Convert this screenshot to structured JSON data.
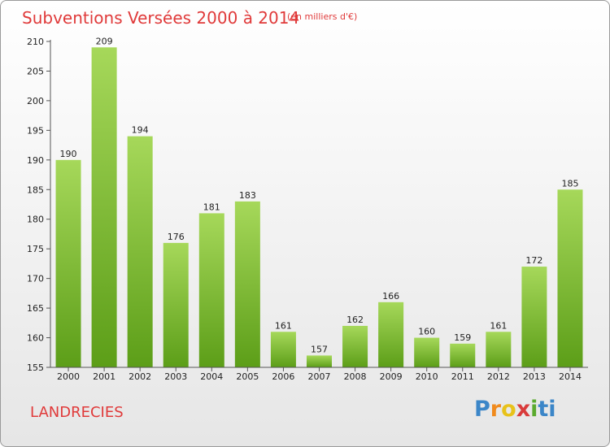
{
  "header": {
    "title": "Subventions Versées 2000 à 2014",
    "subtitle": "(en milliers d'€)"
  },
  "footer": {
    "commune": "LANDRECIES",
    "logo_text": "Proxiti",
    "logo_colors": [
      "#3b86c8",
      "#f08a1c",
      "#e8c21a",
      "#d93b3b",
      "#5aaa2e",
      "#3b86c8"
    ]
  },
  "chart_data": {
    "type": "bar",
    "title": "Subventions Versées 2000 à 2014",
    "subtitle": "(en milliers d'€)",
    "xlabel": "",
    "ylabel": "",
    "categories": [
      "2000",
      "2001",
      "2002",
      "2003",
      "2004",
      "2005",
      "2006",
      "2007",
      "2008",
      "2009",
      "2010",
      "2011",
      "2012",
      "2013",
      "2014"
    ],
    "values": [
      190,
      209,
      194,
      176,
      181,
      183,
      161,
      157,
      162,
      166,
      160,
      159,
      161,
      172,
      185
    ],
    "ylim": [
      155,
      210
    ],
    "yticks": [
      155,
      160,
      165,
      170,
      175,
      180,
      185,
      190,
      195,
      200,
      205,
      210
    ],
    "grid": false,
    "legend": "none",
    "bar_color_top": "#a6d85a",
    "bar_color_bottom": "#5c9e18"
  }
}
